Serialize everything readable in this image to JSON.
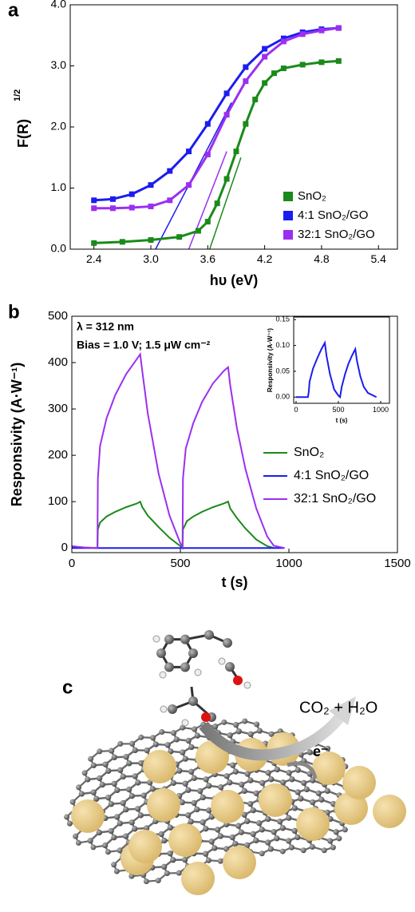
{
  "chart_data": [
    {
      "type": "line",
      "panel": "a",
      "xlabel": "hυ (eV)",
      "ylabel": "F(R)",
      "ylabel_sup": "1/2",
      "xlim": [
        2.15,
        5.6
      ],
      "ylim": [
        0,
        4.0
      ],
      "xticks": [
        2.4,
        {
          "value": 3.0,
          "label": "3.0"
        },
        3.6,
        4.2,
        4.8,
        5.4
      ],
      "yticks": [
        {
          "value": 0,
          "label": "0.0"
        },
        {
          "value": 1,
          "label": "1.0"
        },
        {
          "value": 2,
          "label": "2.0"
        },
        {
          "value": 3,
          "label": "3.0"
        },
        {
          "value": 4,
          "label": "4.0"
        }
      ],
      "marker": "square",
      "series": [
        {
          "name": "SnO₂",
          "color": "#1a8a1a",
          "x": [
            2.4,
            2.7,
            3.0,
            3.3,
            3.5,
            3.6,
            3.7,
            3.8,
            3.9,
            4.0,
            4.1,
            4.2,
            4.3,
            4.4,
            4.6,
            4.8,
            4.98
          ],
          "values": [
            0.1,
            0.12,
            0.15,
            0.2,
            0.3,
            0.45,
            0.75,
            1.15,
            1.6,
            2.05,
            2.45,
            2.72,
            2.88,
            2.96,
            3.02,
            3.06,
            3.08
          ]
        },
        {
          "name": "4:1 SnO₂/GO",
          "color": "#1c1cf0",
          "x": [
            2.4,
            2.6,
            2.8,
            3.0,
            3.2,
            3.4,
            3.6,
            3.8,
            4.0,
            4.2,
            4.4,
            4.6,
            4.8,
            4.98
          ],
          "values": [
            0.8,
            0.82,
            0.9,
            1.05,
            1.28,
            1.6,
            2.05,
            2.55,
            2.98,
            3.28,
            3.45,
            3.55,
            3.6,
            3.62
          ]
        },
        {
          "name": "32:1 SnO₂/GO",
          "color": "#9b2ff0",
          "x": [
            2.4,
            2.6,
            2.8,
            3.0,
            3.2,
            3.4,
            3.6,
            3.8,
            4.0,
            4.2,
            4.4,
            4.6,
            4.8,
            4.98
          ],
          "values": [
            0.67,
            0.67,
            0.68,
            0.7,
            0.8,
            1.05,
            1.55,
            2.2,
            2.75,
            3.15,
            3.4,
            3.52,
            3.58,
            3.62
          ]
        }
      ],
      "tangents": [
        {
          "color": "#1a8a1a",
          "x": [
            3.62,
            3.95
          ],
          "y": [
            0,
            1.5
          ]
        },
        {
          "color": "#1c1cf0",
          "x": [
            3.05,
            3.85
          ],
          "y": [
            0,
            2.4
          ]
        },
        {
          "color": "#9b2ff0",
          "x": [
            3.4,
            3.8
          ],
          "y": [
            0,
            1.6
          ]
        }
      ]
    },
    {
      "type": "line",
      "panel": "b",
      "xlabel": "t (s)",
      "ylabel": "Responsivity (A·W⁻¹)",
      "annotations": [
        "λ = 312 nm",
        "Bias = 1.0 V; 1.5 μW cm⁻²"
      ],
      "xlim": [
        0,
        1500
      ],
      "ylim": [
        -10,
        500
      ],
      "xticks": [
        0,
        500,
        1000,
        1500
      ],
      "yticks": [
        0,
        100,
        200,
        300,
        400,
        500
      ],
      "series": [
        {
          "name": "SnO₂",
          "color": "#1a8a1a",
          "x": [
            0,
            60,
            118,
            120,
            130,
            160,
            200,
            250,
            300,
            315,
            325,
            350,
            400,
            450,
            500,
            510,
            512,
            530,
            560,
            600,
            650,
            700,
            720,
            730,
            760,
            800,
            850,
            900,
            930
          ],
          "values": [
            3,
            1,
            0,
            40,
            55,
            68,
            78,
            88,
            96,
            100,
            88,
            70,
            45,
            22,
            4,
            0,
            40,
            58,
            68,
            78,
            88,
            96,
            100,
            85,
            65,
            42,
            18,
            4,
            0
          ]
        },
        {
          "name": "4:1 SnO₂/GO",
          "color": "#1c1cf0",
          "x": [
            0,
            500,
            980
          ],
          "values": [
            0,
            0,
            0
          ]
        },
        {
          "name": "32:1 SnO₂/GO",
          "color": "#9b2ff0",
          "x": [
            0,
            20,
            60,
            118,
            120,
            130,
            160,
            200,
            250,
            300,
            315,
            325,
            350,
            400,
            450,
            500,
            510,
            512,
            525,
            560,
            600,
            650,
            700,
            720,
            730,
            760,
            800,
            850,
            900,
            930,
            980
          ],
          "values": [
            4,
            3,
            1,
            0,
            150,
            220,
            280,
            330,
            375,
            408,
            418,
            380,
            290,
            160,
            70,
            10,
            2,
            150,
            215,
            270,
            315,
            355,
            382,
            390,
            350,
            260,
            170,
            85,
            25,
            5,
            0
          ]
        }
      ]
    },
    {
      "type": "line",
      "xlabel": "t (s)",
      "ylabel": "Responsivity (A·W⁻¹)",
      "xlim": [
        -28,
        1104
      ],
      "ylim": [
        -0.012,
        0.155
      ],
      "xticks": [
        0,
        500,
        1000
      ],
      "yticks": [
        {
          "value": 0,
          "label": "0.00"
        },
        {
          "value": 0.05,
          "label": "0.05"
        },
        {
          "value": 0.1,
          "label": "0.10"
        },
        {
          "value": 0.15,
          "label": "0.15"
        }
      ],
      "series": [
        {
          "color": "#1c1cf0",
          "x": [
            0,
            140,
            150,
            160,
            200,
            250,
            300,
            340,
            360,
            400,
            450,
            500,
            520,
            540,
            580,
            620,
            660,
            700,
            720,
            760,
            800,
            850,
            950
          ],
          "values": [
            0,
            0,
            0.01,
            0.03,
            0.055,
            0.075,
            0.093,
            0.105,
            0.08,
            0.045,
            0.015,
            0.003,
            0,
            0.02,
            0.045,
            0.065,
            0.08,
            0.093,
            0.07,
            0.04,
            0.02,
            0.008,
            0
          ]
        }
      ]
    }
  ],
  "diagram": {
    "panel": "c",
    "product": "CO₂ + H₂O",
    "electron": "e⁻"
  }
}
